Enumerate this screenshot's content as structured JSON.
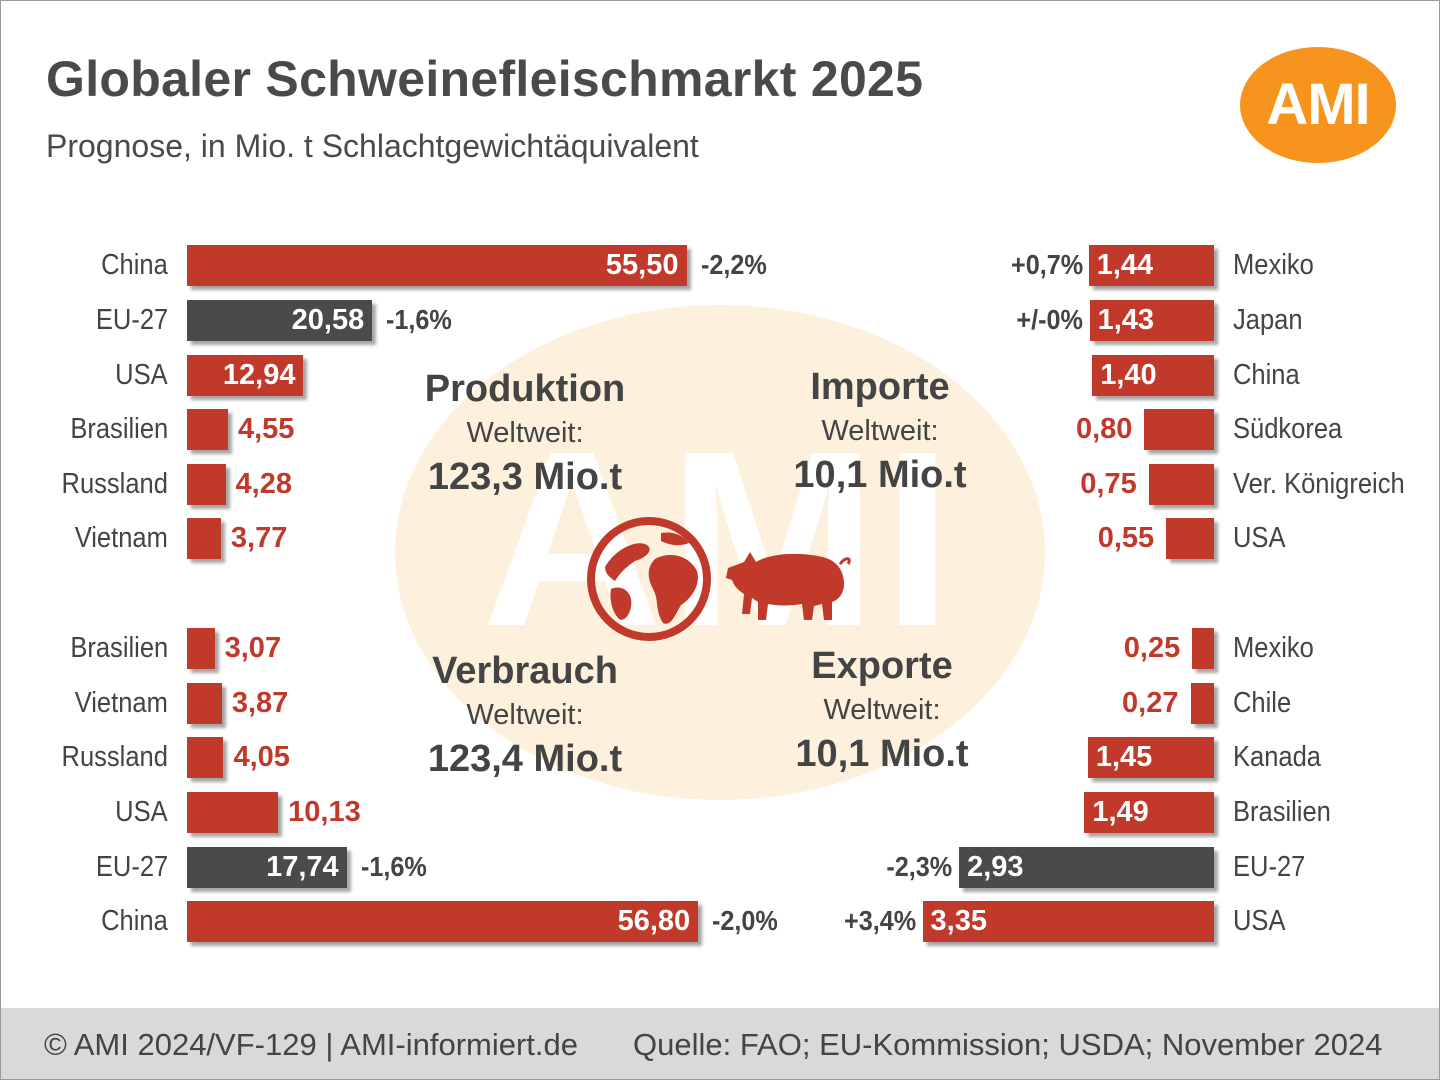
{
  "header": {
    "title": "Globaler Schweinefleischmarkt 2025",
    "subtitle": "Prognose, in Mio. t Schlachtgewichtäquivalent",
    "logo_text": "AMI"
  },
  "center": {
    "watermark": "AMI",
    "produktion": {
      "heading": "Produktion",
      "sub": "Weltweit:",
      "total": "123,3 Mio.t"
    },
    "importe": {
      "heading": "Importe",
      "sub": "Weltweit:",
      "total": "10,1 Mio.t"
    },
    "verbrauch": {
      "heading": "Verbrauch",
      "sub": "Weltweit:",
      "total": "123,4 Mio.t"
    },
    "exporte": {
      "heading": "Exporte",
      "sub": "Weltweit:",
      "total": "10,1 Mio.t"
    }
  },
  "footer": {
    "left": "© AMI 2024/VF-129 | AMI-informiert.de",
    "right": "Quelle: FAO; EU-Kommission; USDA; November 2024"
  },
  "colors": {
    "red": "#c0392b",
    "dark": "#4a4a4a",
    "orange": "#f7941d",
    "watermark": "#fdf1dd"
  },
  "chart_data": [
    {
      "type": "bar",
      "name": "Produktion",
      "orientation": "horizontal",
      "categories": [
        "China",
        "EU-27",
        "USA",
        "Brasilien",
        "Russland",
        "Vietnam"
      ],
      "values": [
        55.5,
        20.58,
        12.94,
        4.55,
        4.28,
        3.77
      ],
      "labels": [
        "55,50",
        "20,58",
        "12,94",
        "4,55",
        "4,28",
        "3,77"
      ],
      "changes": [
        "-2,2%",
        "-1,6%",
        "",
        "",
        "",
        ""
      ],
      "highlight": "EU-27"
    },
    {
      "type": "bar",
      "name": "Verbrauch",
      "orientation": "horizontal",
      "categories": [
        "Brasilien",
        "Vietnam",
        "Russland",
        "USA",
        "EU-27",
        "China"
      ],
      "values": [
        3.07,
        3.87,
        4.05,
        10.13,
        17.74,
        56.8
      ],
      "labels": [
        "3,07",
        "3,87",
        "4,05",
        "10,13",
        "17,74",
        "56,80"
      ],
      "changes": [
        "",
        "",
        "",
        "",
        "-1,6%",
        "-2,0%"
      ],
      "highlight": "EU-27"
    },
    {
      "type": "bar",
      "name": "Importe",
      "orientation": "horizontal",
      "categories": [
        "Mexiko",
        "Japan",
        "China",
        "Südkorea",
        "Ver. Königreich",
        "USA"
      ],
      "values": [
        1.44,
        1.43,
        1.4,
        0.8,
        0.75,
        0.55
      ],
      "labels": [
        "1,44",
        "1,43",
        "1,40",
        "0,80",
        "0,75",
        "0,55"
      ],
      "changes": [
        "+0,7%",
        "+/-0%",
        "",
        "",
        "",
        ""
      ]
    },
    {
      "type": "bar",
      "name": "Exporte",
      "orientation": "horizontal",
      "categories": [
        "Mexiko",
        "Chile",
        "Kanada",
        "Brasilien",
        "EU-27",
        "USA"
      ],
      "values": [
        0.25,
        0.27,
        1.45,
        1.49,
        2.93,
        3.35
      ],
      "labels": [
        "0,25",
        "0,27",
        "1,45",
        "1,49",
        "2,93",
        "3,35"
      ],
      "changes": [
        "",
        "",
        "",
        "",
        "-2,3%",
        "+3,4%"
      ],
      "highlight": "EU-27"
    }
  ]
}
